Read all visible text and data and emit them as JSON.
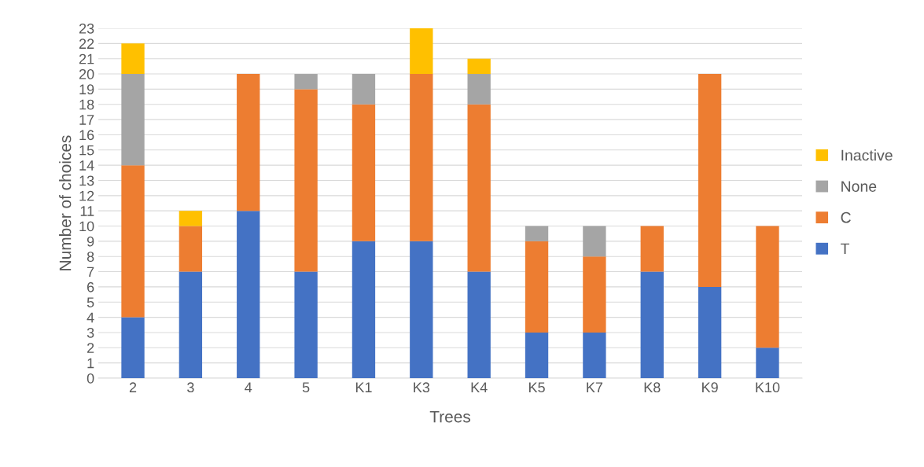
{
  "chart_data": {
    "type": "bar",
    "stacked": true,
    "xlabel": "Trees",
    "ylabel": "Number of choices",
    "categories": [
      "2",
      "3",
      "4",
      "5",
      "K1",
      "K3",
      "K4",
      "K5",
      "K7",
      "K8",
      "K9",
      "K10"
    ],
    "series": [
      {
        "name": "T",
        "color": "#4472c4",
        "values": [
          4,
          7,
          11,
          7,
          9,
          9,
          7,
          3,
          3,
          7,
          6,
          2
        ]
      },
      {
        "name": "C",
        "color": "#ed7d31",
        "values": [
          10,
          3,
          9,
          12,
          9,
          11,
          11,
          6,
          5,
          3,
          14,
          8
        ]
      },
      {
        "name": "None",
        "color": "#a5a5a5",
        "values": [
          6,
          0,
          0,
          1,
          2,
          0,
          2,
          1,
          2,
          0,
          0,
          0
        ]
      },
      {
        "name": "Inactive",
        "color": "#ffc000",
        "values": [
          2,
          1,
          0,
          0,
          0,
          3,
          1,
          0,
          0,
          0,
          0,
          0
        ]
      }
    ],
    "ylim": [
      0,
      23
    ],
    "yticks": [
      0,
      1,
      2,
      3,
      4,
      5,
      6,
      7,
      8,
      9,
      10,
      11,
      12,
      13,
      14,
      15,
      16,
      17,
      18,
      19,
      20,
      21,
      22,
      23
    ],
    "grid": "y",
    "legend": "right"
  }
}
